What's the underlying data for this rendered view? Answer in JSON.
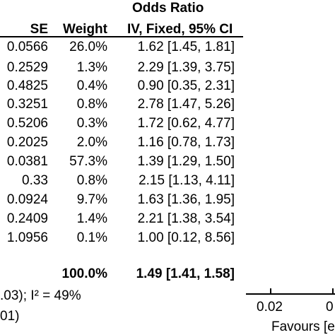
{
  "header": {
    "group_title": "Odds Ratio",
    "se": "SE",
    "weight": "Weight",
    "method": "IV, Fixed, 95% CI"
  },
  "rows": [
    {
      "se": "0.0566",
      "weight": "26.0%",
      "or": "1.62 [1.45, 1.81]"
    },
    {
      "se": "0.2529",
      "weight": "1.3%",
      "or": "2.29 [1.39, 3.75]"
    },
    {
      "se": "0.4825",
      "weight": "0.4%",
      "or": "0.90 [0.35, 2.31]"
    },
    {
      "se": "0.3251",
      "weight": "0.8%",
      "or": "2.78 [1.47, 5.26]"
    },
    {
      "se": "0.5206",
      "weight": "0.3%",
      "or": "1.72 [0.62, 4.77]"
    },
    {
      "se": "0.2025",
      "weight": "2.0%",
      "or": "1.16 [0.78, 1.73]"
    },
    {
      "se": "0.0381",
      "weight": "57.3%",
      "or": "1.39 [1.29, 1.50]"
    },
    {
      "se": "0.33",
      "weight": "0.8%",
      "or": "2.15 [1.13, 4.11]"
    },
    {
      "se": "0.0924",
      "weight": "9.7%",
      "or": "1.63 [1.36, 1.95]"
    },
    {
      "se": "0.2409",
      "weight": "1.4%",
      "or": "2.21 [1.38, 3.54]"
    },
    {
      "se": "1.0956",
      "weight": "0.1%",
      "or": "1.00 [0.12, 8.56]"
    }
  ],
  "total": {
    "weight": "100.0%",
    "or": "1.49 [1.41, 1.58]"
  },
  "heterogeneity": ".03); I² = 49%",
  "overall_test": "01)",
  "axis": {
    "tick_label_1": "0.02",
    "tick_label_2": "0"
  },
  "favours_label": "Favours [e"
}
